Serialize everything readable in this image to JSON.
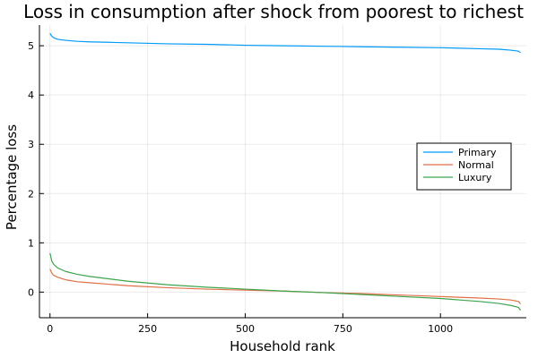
{
  "chart_data": {
    "type": "line",
    "title": "Loss in consumption after shock from poorest to richest",
    "xlabel": "Household rank",
    "ylabel": "Percentage loss",
    "xlim": [
      -27,
      1220
    ],
    "ylim": [
      -0.52,
      5.42
    ],
    "xticks": [
      0,
      250,
      500,
      750,
      1000
    ],
    "yticks": [
      0,
      1,
      2,
      3,
      4,
      5
    ],
    "grid": true,
    "legend_position": "right",
    "series": [
      {
        "name": "Primary",
        "color": "#009AFA",
        "x": [
          0,
          5,
          10,
          20,
          40,
          70,
          100,
          150,
          200,
          300,
          400,
          500,
          600,
          700,
          800,
          900,
          1000,
          1100,
          1150,
          1180,
          1200,
          1205
        ],
        "y": [
          5.25,
          5.19,
          5.16,
          5.13,
          5.11,
          5.09,
          5.08,
          5.07,
          5.06,
          5.04,
          5.03,
          5.01,
          5.0,
          4.99,
          4.98,
          4.97,
          4.96,
          4.94,
          4.93,
          4.91,
          4.89,
          4.86
        ]
      },
      {
        "name": "Normal",
        "color": "#E26F46",
        "x": [
          0,
          5,
          10,
          20,
          40,
          70,
          100,
          150,
          200,
          300,
          400,
          500,
          600,
          700,
          800,
          900,
          1000,
          1100,
          1150,
          1180,
          1200,
          1205
        ],
        "y": [
          0.47,
          0.38,
          0.34,
          0.3,
          0.25,
          0.21,
          0.19,
          0.16,
          0.13,
          0.09,
          0.06,
          0.04,
          0.02,
          -0.01,
          -0.03,
          -0.06,
          -0.09,
          -0.12,
          -0.14,
          -0.16,
          -0.19,
          -0.24
        ]
      },
      {
        "name": "Luxury",
        "color": "#3DA44D",
        "x": [
          0,
          5,
          10,
          20,
          40,
          70,
          100,
          150,
          200,
          300,
          400,
          500,
          600,
          700,
          800,
          900,
          1000,
          1100,
          1150,
          1180,
          1200,
          1205
        ],
        "y": [
          0.79,
          0.62,
          0.56,
          0.49,
          0.42,
          0.36,
          0.32,
          0.27,
          0.22,
          0.15,
          0.1,
          0.06,
          0.02,
          -0.01,
          -0.05,
          -0.09,
          -0.13,
          -0.19,
          -0.23,
          -0.27,
          -0.31,
          -0.37
        ]
      }
    ]
  }
}
